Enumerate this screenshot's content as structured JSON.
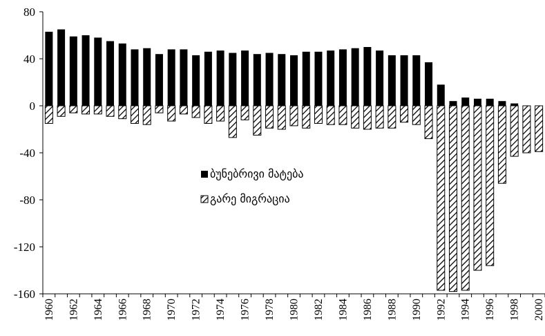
{
  "chart_data": {
    "type": "bar",
    "title": "",
    "xlabel": "",
    "ylabel": "",
    "ylim": [
      -160,
      80
    ],
    "yticks": [
      80,
      40,
      0,
      -40,
      -80,
      -120,
      -160
    ],
    "categories": [
      "1960",
      "1961",
      "1962",
      "1963",
      "1964",
      "1965",
      "1966",
      "1967",
      "1968",
      "1969",
      "1970",
      "1971",
      "1972",
      "1973",
      "1974",
      "1975",
      "1976",
      "1977",
      "1978",
      "1979",
      "1980",
      "1981",
      "1982",
      "1983",
      "1984",
      "1985",
      "1986",
      "1987",
      "1988",
      "1989",
      "1990",
      "1991",
      "1992",
      "1993",
      "1994",
      "1995",
      "1996",
      "1997",
      "1998",
      "1999",
      "2000"
    ],
    "xtick_labels": [
      "1960",
      "1962",
      "1964",
      "1966",
      "1968",
      "1970",
      "1972",
      "1974",
      "1976",
      "1978",
      "1980",
      "1982",
      "1984",
      "1986",
      "1988",
      "1990",
      "1992",
      "1994",
      "1996",
      "1998",
      "2000"
    ],
    "legend_position": "center",
    "series": [
      {
        "name": "ბუნებრივი მატება",
        "fill": "solid",
        "color": "#000000",
        "values": [
          63,
          65,
          59,
          60,
          58,
          55,
          53,
          48,
          49,
          44,
          48,
          48,
          43,
          46,
          47,
          45,
          47,
          44,
          45,
          44,
          43,
          46,
          46,
          47,
          48,
          49,
          50,
          47,
          43,
          43,
          43,
          37,
          18,
          4,
          7,
          6,
          6,
          4,
          2,
          -1,
          0
        ]
      },
      {
        "name": "გარე მიგრაცია",
        "fill": "hatched",
        "color": "#000000",
        "values": [
          -15,
          -9,
          -6,
          -7,
          -7,
          -9,
          -11,
          -15,
          -16,
          -6,
          -13,
          -7,
          -10,
          -15,
          -13,
          -27,
          -12,
          -25,
          -19,
          -20,
          -17,
          -19,
          -15,
          -16,
          -16,
          -19,
          -20,
          -19,
          -19,
          -14,
          -16,
          -28,
          -157,
          -158,
          -157,
          -140,
          -136,
          -66,
          -43,
          -40,
          -39
        ]
      }
    ]
  }
}
